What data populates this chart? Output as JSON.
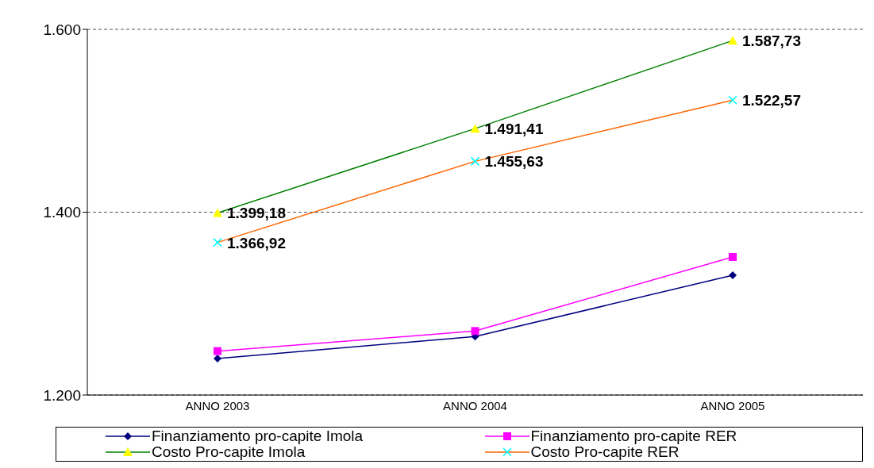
{
  "chart_data": {
    "type": "line",
    "categories": [
      "ANNO 2003",
      "ANNO 2004",
      "ANNO 2005"
    ],
    "ylim": [
      1200,
      1600
    ],
    "yticks": [
      {
        "value": 1200,
        "label": "1.200"
      },
      {
        "value": 1400,
        "label": "1.400"
      },
      {
        "value": 1600,
        "label": "1.600"
      }
    ],
    "grid": "y",
    "legend": "bottom",
    "series": [
      {
        "name": "Finanziamento pro-capite Imola",
        "color": "#000080",
        "marker": "diamond",
        "colors": [
          "#000080",
          "#000080",
          "#000080"
        ],
        "values": [
          1240,
          1264,
          1331
        ]
      },
      {
        "name": "Finanziamento pro-capite RER",
        "color": "#ff00ff",
        "marker": "square",
        "colors": [
          "#ff00ff",
          "#ff00ff",
          "#ff00ff"
        ],
        "values": [
          1248,
          1270,
          1351
        ]
      },
      {
        "name": "Costo Pro-capite Imola",
        "color": "#008000",
        "marker": "triangle",
        "colors": [
          "#ffff00",
          "#ffff00",
          "#ffff00"
        ],
        "values": [
          1399.18,
          1491.41,
          1587.73
        ],
        "value_labels": [
          "1.399,18",
          "1.491,41",
          "1.587,73"
        ]
      },
      {
        "name": "Costo Pro-capite RER",
        "color": "#ff6600",
        "marker": "cross",
        "colors": [
          "#00ffff",
          "#00ffff",
          "#00ffff"
        ],
        "values": [
          1366.92,
          1455.63,
          1522.57
        ],
        "value_labels": [
          "1.366,92",
          "1.455,63",
          "1.522,57"
        ]
      }
    ]
  }
}
